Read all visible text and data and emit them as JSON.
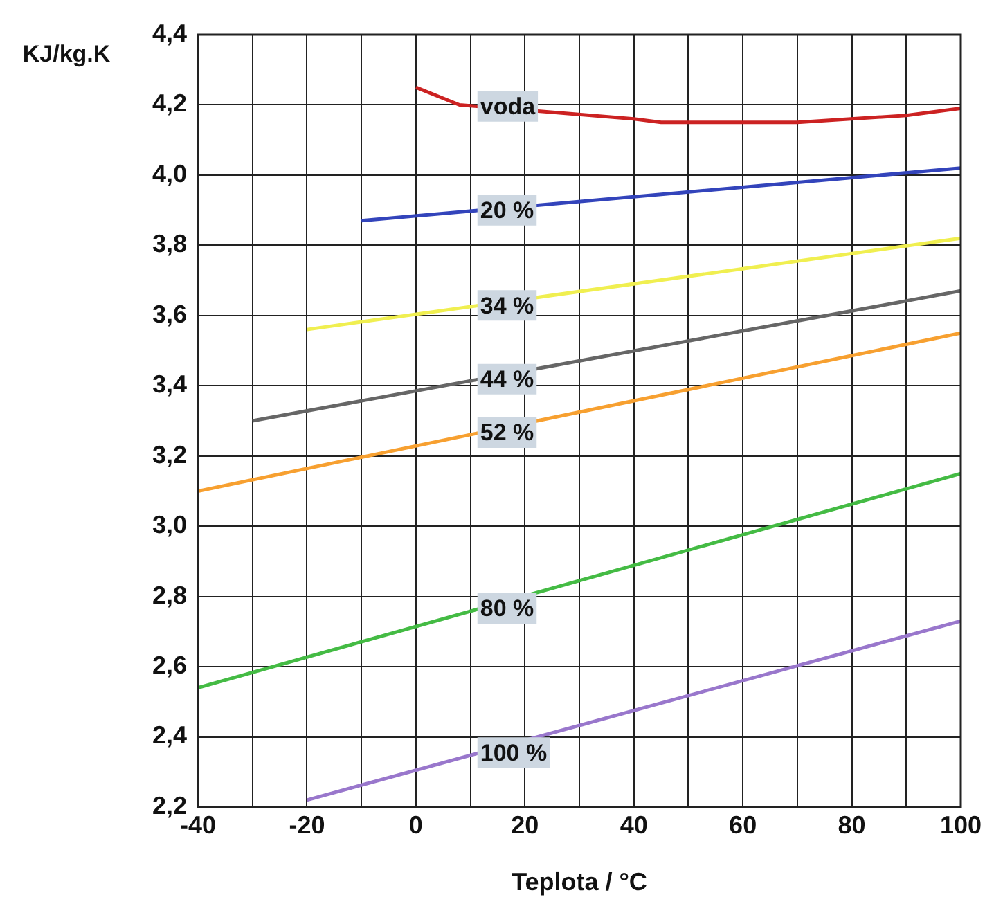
{
  "chart_data": {
    "type": "line",
    "xlabel": "Teplota / °C",
    "ylabel": "KJ/kg.K",
    "xlim": [
      -40,
      100
    ],
    "xticks": [
      -40,
      {
        "value": -30,
        "label": null
      },
      -20,
      {
        "value": -10,
        "label": null
      },
      0,
      {
        "value": 10,
        "label": null
      },
      20,
      {
        "value": 30,
        "label": null
      },
      40,
      {
        "value": 50,
        "label": null
      },
      60,
      {
        "value": 70,
        "label": null
      },
      80,
      {
        "value": 90,
        "label": null
      },
      100
    ],
    "ylim": [
      2.2,
      4.4
    ],
    "yticks": [
      {
        "value": 2.2,
        "label": "2,2"
      },
      {
        "value": 2.4,
        "label": "2,4"
      },
      {
        "value": 2.6,
        "label": "2,6"
      },
      {
        "value": 2.8,
        "label": "2,8"
      },
      {
        "value": 3.0,
        "label": "3,0"
      },
      {
        "value": 3.2,
        "label": "3,2"
      },
      {
        "value": 3.4,
        "label": "3,4"
      },
      {
        "value": 3.6,
        "label": "3,6"
      },
      {
        "value": 3.8,
        "label": "3,8"
      },
      {
        "value": 4.0,
        "label": "4,0"
      },
      {
        "value": 4.2,
        "label": "4,2"
      },
      {
        "value": 4.4,
        "label": "4,4"
      }
    ],
    "grid": true,
    "legend": false,
    "marker": "none",
    "line_style": "solid",
    "series": [
      {
        "name": "voda",
        "color": "#cc2222",
        "x": [
          0,
          8,
          40,
          45,
          70,
          90,
          100
        ],
        "values": [
          4.25,
          4.2,
          4.16,
          4.15,
          4.15,
          4.17,
          4.19
        ]
      },
      {
        "name": "20 %",
        "color": "#3344bb",
        "x": [
          -10,
          100
        ],
        "values": [
          3.87,
          4.02
        ]
      },
      {
        "name": "34 %",
        "color": "#f0ef50",
        "x": [
          -20,
          100
        ],
        "values": [
          3.56,
          3.82
        ]
      },
      {
        "name": "44 %",
        "color": "#666666",
        "x": [
          -30,
          100
        ],
        "values": [
          3.3,
          3.67
        ]
      },
      {
        "name": "52 %",
        "color": "#f7a030",
        "x": [
          -40,
          100
        ],
        "values": [
          3.1,
          3.55
        ]
      },
      {
        "name": "80 %",
        "color": "#44bb44",
        "x": [
          -40,
          100
        ],
        "values": [
          2.54,
          3.15
        ]
      },
      {
        "name": "100 %",
        "color": "#9977cc",
        "x": [
          -20,
          100
        ],
        "values": [
          2.22,
          2.73
        ]
      }
    ]
  }
}
